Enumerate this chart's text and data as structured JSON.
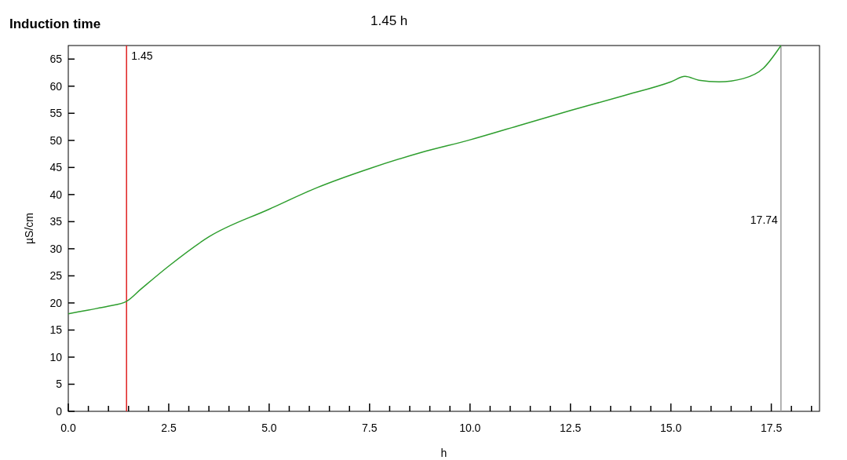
{
  "chart_data": {
    "type": "line",
    "title": "Induction time",
    "subtitle": "1.45 h",
    "xlabel": "h",
    "ylabel": "µS/cm",
    "x": [
      0,
      0.5,
      1.0,
      1.45,
      1.8,
      2.5,
      3.5,
      5.0,
      6.2,
      7.5,
      8.8,
      10.0,
      11.2,
      12.5,
      13.8,
      15.0,
      15.35,
      15.7,
      16.2,
      16.8,
      17.3,
      17.74
    ],
    "series": [
      {
        "color": "#2e9e2e",
        "values": [
          18.0,
          18.7,
          19.4,
          20.3,
          22.5,
          26.8,
          32.2,
          37.3,
          41.3,
          44.8,
          47.8,
          50.1,
          52.7,
          55.5,
          58.2,
          60.8,
          61.8,
          61.1,
          60.8,
          61.4,
          63.3,
          67.5
        ]
      }
    ],
    "xlim": [
      0,
      18.7
    ],
    "ylim": [
      0,
      67.5
    ],
    "xticks": [
      {
        "value": 0,
        "label": "0.0"
      },
      {
        "value": 0.5,
        "label": null
      },
      {
        "value": 1,
        "label": null
      },
      {
        "value": 1.5,
        "label": null
      },
      {
        "value": 2,
        "label": null
      },
      {
        "value": 2.5,
        "label": "2.5"
      },
      {
        "value": 3,
        "label": null
      },
      {
        "value": 3.5,
        "label": null
      },
      {
        "value": 4,
        "label": null
      },
      {
        "value": 4.5,
        "label": null
      },
      {
        "value": 5,
        "label": "5.0"
      },
      {
        "value": 5.5,
        "label": null
      },
      {
        "value": 6,
        "label": null
      },
      {
        "value": 6.5,
        "label": null
      },
      {
        "value": 7,
        "label": null
      },
      {
        "value": 7.5,
        "label": "7.5"
      },
      {
        "value": 8,
        "label": null
      },
      {
        "value": 8.5,
        "label": null
      },
      {
        "value": 9,
        "label": null
      },
      {
        "value": 9.5,
        "label": null
      },
      {
        "value": 10,
        "label": "10.0"
      },
      {
        "value": 10.5,
        "label": null
      },
      {
        "value": 11,
        "label": null
      },
      {
        "value": 11.5,
        "label": null
      },
      {
        "value": 12,
        "label": null
      },
      {
        "value": 12.5,
        "label": "12.5"
      },
      {
        "value": 13,
        "label": null
      },
      {
        "value": 13.5,
        "label": null
      },
      {
        "value": 14,
        "label": null
      },
      {
        "value": 14.5,
        "label": null
      },
      {
        "value": 15,
        "label": "15.0"
      },
      {
        "value": 15.5,
        "label": null
      },
      {
        "value": 16,
        "label": null
      },
      {
        "value": 16.5,
        "label": null
      },
      {
        "value": 17,
        "label": null
      },
      {
        "value": 17.5,
        "label": "17.5"
      },
      {
        "value": 18,
        "label": null
      },
      {
        "value": 18.5,
        "label": null
      }
    ],
    "yticks": [
      0,
      5,
      10,
      15,
      20,
      25,
      30,
      35,
      40,
      45,
      50,
      55,
      60,
      65
    ],
    "ref_lines": [
      {
        "axis": "x",
        "value": 1.45,
        "label": "1.45",
        "color": "#e02020"
      },
      {
        "axis": "x",
        "value": 17.74,
        "label": "17.74",
        "color": "#999999"
      }
    ],
    "grid": false,
    "marker": "none",
    "line_style": "solid"
  }
}
